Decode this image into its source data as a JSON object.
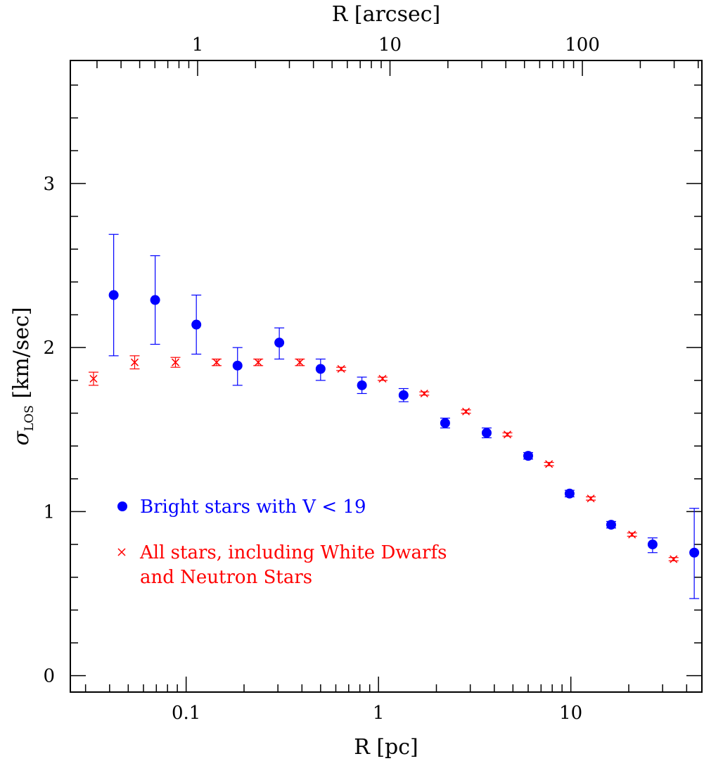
{
  "chart_data": {
    "type": "scatter",
    "x_axis": {
      "label": "R [pc]",
      "scale": "log",
      "range": [
        0.025,
        48
      ],
      "ticks": [
        {
          "value": 0.1,
          "label": "0.1"
        },
        {
          "value": 1,
          "label": "1"
        },
        {
          "value": 10,
          "label": "10"
        }
      ]
    },
    "x2_axis": {
      "label": "R [arcsec]",
      "scale": "log",
      "range": [
        0.218,
        418
      ],
      "ticks": [
        {
          "value": 1,
          "label": "1"
        },
        {
          "value": 10,
          "label": "10"
        },
        {
          "value": 100,
          "label": "100"
        }
      ]
    },
    "y_axis": {
      "label_main": "σ",
      "label_sub": "LOS",
      "label_rest": " [km/sec]",
      "range": [
        -0.1,
        3.75
      ],
      "ticks": [
        {
          "value": 0,
          "label": "0"
        },
        {
          "value": 1,
          "label": "1"
        },
        {
          "value": 2,
          "label": "2"
        },
        {
          "value": 3,
          "label": "3"
        }
      ]
    },
    "series": [
      {
        "name": "Bright stars with V < 19",
        "marker": "circle",
        "color": "#0000ff",
        "points": [
          {
            "x": 0.042,
            "y": 2.32,
            "lo": 1.95,
            "hi": 2.69
          },
          {
            "x": 0.069,
            "y": 2.29,
            "lo": 2.02,
            "hi": 2.56
          },
          {
            "x": 0.113,
            "y": 2.14,
            "lo": 1.96,
            "hi": 2.32
          },
          {
            "x": 0.185,
            "y": 1.89,
            "lo": 1.77,
            "hi": 2.0
          },
          {
            "x": 0.305,
            "y": 2.03,
            "lo": 1.93,
            "hi": 2.12
          },
          {
            "x": 0.5,
            "y": 1.87,
            "lo": 1.8,
            "hi": 1.93
          },
          {
            "x": 0.82,
            "y": 1.77,
            "lo": 1.72,
            "hi": 1.82
          },
          {
            "x": 1.35,
            "y": 1.71,
            "lo": 1.67,
            "hi": 1.75
          },
          {
            "x": 2.22,
            "y": 1.54,
            "lo": 1.51,
            "hi": 1.57
          },
          {
            "x": 3.65,
            "y": 1.48,
            "lo": 1.45,
            "hi": 1.51
          },
          {
            "x": 6.0,
            "y": 1.34,
            "lo": 1.32,
            "hi": 1.36
          },
          {
            "x": 9.85,
            "y": 1.11,
            "lo": 1.09,
            "hi": 1.13
          },
          {
            "x": 16.2,
            "y": 0.92,
            "lo": 0.9,
            "hi": 0.94
          },
          {
            "x": 26.6,
            "y": 0.8,
            "lo": 0.75,
            "hi": 0.84
          },
          {
            "x": 43.8,
            "y": 0.75,
            "lo": 0.47,
            "hi": 1.02
          }
        ]
      },
      {
        "name": "All stars, including White Dwarfs",
        "name_line2": "and Neutron Stars",
        "marker": "cross",
        "color": "#ff0000",
        "points": [
          {
            "x": 0.033,
            "y": 1.81,
            "lo": 1.77,
            "hi": 1.85
          },
          {
            "x": 0.054,
            "y": 1.91,
            "lo": 1.87,
            "hi": 1.95
          },
          {
            "x": 0.088,
            "y": 1.91,
            "lo": 1.88,
            "hi": 1.94
          },
          {
            "x": 0.144,
            "y": 1.91,
            "lo": 1.89,
            "hi": 1.93
          },
          {
            "x": 0.237,
            "y": 1.91,
            "lo": 1.89,
            "hi": 1.93
          },
          {
            "x": 0.39,
            "y": 1.91,
            "lo": 1.89,
            "hi": 1.93
          },
          {
            "x": 0.64,
            "y": 1.87,
            "lo": 1.86,
            "hi": 1.88
          },
          {
            "x": 1.05,
            "y": 1.81,
            "lo": 1.8,
            "hi": 1.82
          },
          {
            "x": 1.73,
            "y": 1.72,
            "lo": 1.71,
            "hi": 1.73
          },
          {
            "x": 2.85,
            "y": 1.61,
            "lo": 1.6,
            "hi": 1.62
          },
          {
            "x": 4.68,
            "y": 1.47,
            "lo": 1.46,
            "hi": 1.48
          },
          {
            "x": 7.7,
            "y": 1.29,
            "lo": 1.28,
            "hi": 1.3
          },
          {
            "x": 12.7,
            "y": 1.08,
            "lo": 1.07,
            "hi": 1.09
          },
          {
            "x": 20.8,
            "y": 0.86,
            "lo": 0.85,
            "hi": 0.87
          },
          {
            "x": 34.2,
            "y": 0.71,
            "lo": 0.7,
            "hi": 0.72
          }
        ]
      }
    ],
    "legend_position": "lower-left",
    "grid": false
  }
}
